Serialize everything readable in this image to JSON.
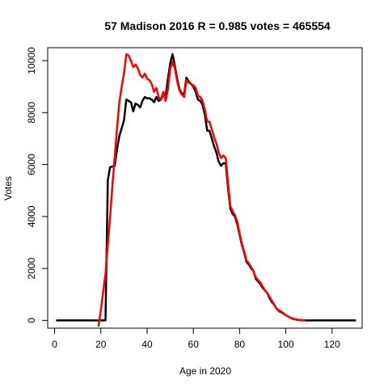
{
  "chart_data": {
    "type": "line",
    "title": "57 Madison 2016 R = 0.985 votes = 465554",
    "xlabel": "Age in 2020",
    "ylabel": "Votes",
    "xlim": [
      -3,
      133
    ],
    "ylim": [
      -300,
      10500
    ],
    "x_ticks": [
      0,
      20,
      40,
      60,
      80,
      100,
      120
    ],
    "y_ticks": [
      0,
      2000,
      4000,
      6000,
      8000,
      10000
    ],
    "grid": false,
    "series": [
      {
        "color": "#000000",
        "points": [
          [
            1,
            0
          ],
          [
            18,
            0
          ],
          [
            19,
            0
          ],
          [
            20,
            0
          ],
          [
            21,
            0
          ],
          [
            22,
            0
          ],
          [
            23,
            5400
          ],
          [
            24,
            5900
          ],
          [
            26,
            5950
          ],
          [
            27,
            6600
          ],
          [
            28,
            7100
          ],
          [
            29,
            7400
          ],
          [
            30,
            7700
          ],
          [
            31,
            8500
          ],
          [
            32,
            8450
          ],
          [
            33,
            8400
          ],
          [
            34,
            8050
          ],
          [
            35,
            8350
          ],
          [
            36,
            8300
          ],
          [
            37,
            8200
          ],
          [
            38,
            8450
          ],
          [
            39,
            8600
          ],
          [
            40,
            8550
          ],
          [
            41,
            8550
          ],
          [
            42,
            8500
          ],
          [
            43,
            8400
          ],
          [
            44,
            8600
          ],
          [
            45,
            8450
          ],
          [
            46,
            8500
          ],
          [
            47,
            8700
          ],
          [
            48,
            8650
          ],
          [
            49,
            9300
          ],
          [
            50,
            9900
          ],
          [
            51,
            10250
          ],
          [
            52,
            9800
          ],
          [
            53,
            9300
          ],
          [
            54,
            8900
          ],
          [
            55,
            8750
          ],
          [
            56,
            8700
          ],
          [
            57,
            9350
          ],
          [
            58,
            9200
          ],
          [
            59,
            9100
          ],
          [
            60,
            9000
          ],
          [
            61,
            8800
          ],
          [
            62,
            8500
          ],
          [
            63,
            8450
          ],
          [
            64,
            8300
          ],
          [
            65,
            7900
          ],
          [
            66,
            7300
          ],
          [
            67,
            7300
          ],
          [
            68,
            7000
          ],
          [
            69,
            6700
          ],
          [
            70,
            6450
          ],
          [
            71,
            6100
          ],
          [
            72,
            5950
          ],
          [
            73,
            6050
          ],
          [
            74,
            6050
          ],
          [
            75,
            5100
          ],
          [
            76,
            4300
          ],
          [
            77,
            4100
          ],
          [
            78,
            4000
          ],
          [
            79,
            3700
          ],
          [
            80,
            3300
          ],
          [
            81,
            2900
          ],
          [
            82,
            2600
          ],
          [
            83,
            2250
          ],
          [
            84,
            2150
          ],
          [
            85,
            2000
          ],
          [
            86,
            1900
          ],
          [
            87,
            1600
          ],
          [
            88,
            1500
          ],
          [
            89,
            1400
          ],
          [
            90,
            1250
          ],
          [
            91,
            1150
          ],
          [
            92,
            1050
          ],
          [
            93,
            850
          ],
          [
            94,
            700
          ],
          [
            95,
            600
          ],
          [
            96,
            450
          ],
          [
            97,
            380
          ],
          [
            98,
            330
          ],
          [
            99,
            270
          ],
          [
            100,
            200
          ],
          [
            101,
            150
          ],
          [
            102,
            100
          ],
          [
            103,
            60
          ],
          [
            104,
            40
          ],
          [
            105,
            20
          ],
          [
            106,
            10
          ],
          [
            107,
            5
          ],
          [
            108,
            0
          ],
          [
            110,
            0
          ],
          [
            120,
            0
          ],
          [
            130,
            0
          ]
        ]
      },
      {
        "color": "#ff0000",
        "points": [
          [
            19,
            -200
          ],
          [
            20,
            400
          ],
          [
            21,
            1100
          ],
          [
            22,
            1800
          ],
          [
            23,
            2900
          ],
          [
            24,
            4000
          ],
          [
            25,
            5200
          ],
          [
            26,
            6300
          ],
          [
            27,
            7400
          ],
          [
            28,
            8400
          ],
          [
            29,
            9000
          ],
          [
            30,
            9500
          ],
          [
            31,
            10250
          ],
          [
            32,
            10200
          ],
          [
            33,
            10000
          ],
          [
            34,
            9750
          ],
          [
            35,
            9850
          ],
          [
            36,
            9700
          ],
          [
            37,
            9450
          ],
          [
            38,
            9350
          ],
          [
            39,
            9500
          ],
          [
            40,
            9300
          ],
          [
            41,
            9250
          ],
          [
            42,
            9100
          ],
          [
            43,
            8800
          ],
          [
            44,
            8950
          ],
          [
            45,
            8600
          ],
          [
            46,
            8500
          ],
          [
            47,
            8800
          ],
          [
            48,
            8450
          ],
          [
            49,
            8900
          ],
          [
            50,
            9700
          ],
          [
            51,
            9950
          ],
          [
            52,
            9700
          ],
          [
            53,
            9200
          ],
          [
            54,
            8850
          ],
          [
            55,
            8700
          ],
          [
            56,
            8600
          ],
          [
            57,
            9250
          ],
          [
            58,
            9150
          ],
          [
            59,
            9100
          ],
          [
            60,
            9050
          ],
          [
            61,
            8950
          ],
          [
            62,
            8650
          ],
          [
            63,
            8600
          ],
          [
            64,
            8450
          ],
          [
            65,
            8100
          ],
          [
            66,
            7650
          ],
          [
            67,
            7650
          ],
          [
            68,
            7350
          ],
          [
            69,
            7050
          ],
          [
            70,
            6800
          ],
          [
            71,
            6450
          ],
          [
            72,
            6250
          ],
          [
            73,
            6350
          ],
          [
            74,
            6250
          ],
          [
            75,
            5300
          ],
          [
            76,
            4400
          ],
          [
            77,
            4200
          ],
          [
            78,
            4050
          ],
          [
            79,
            3800
          ],
          [
            80,
            3350
          ],
          [
            81,
            2950
          ],
          [
            82,
            2650
          ],
          [
            83,
            2300
          ],
          [
            84,
            2200
          ],
          [
            85,
            2050
          ],
          [
            86,
            1900
          ],
          [
            87,
            1650
          ],
          [
            88,
            1550
          ],
          [
            89,
            1450
          ],
          [
            90,
            1300
          ],
          [
            91,
            1150
          ],
          [
            92,
            1050
          ],
          [
            93,
            900
          ],
          [
            94,
            750
          ],
          [
            95,
            600
          ],
          [
            96,
            450
          ],
          [
            97,
            350
          ],
          [
            98,
            300
          ],
          [
            99,
            250
          ],
          [
            100,
            200
          ],
          [
            101,
            150
          ],
          [
            102,
            100
          ],
          [
            103,
            70
          ],
          [
            104,
            50
          ],
          [
            105,
            30
          ],
          [
            106,
            20
          ],
          [
            107,
            10
          ],
          [
            108,
            0
          ]
        ]
      }
    ]
  }
}
